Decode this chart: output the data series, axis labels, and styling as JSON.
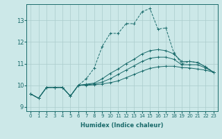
{
  "title": "",
  "xlabel": "Humidex (Indice chaleur)",
  "ylabel": "",
  "bg_color": "#cce8e8",
  "grid_color": "#aacccc",
  "line_color": "#1a6b6b",
  "xlim": [
    -0.5,
    23.5
  ],
  "ylim": [
    8.8,
    13.75
  ],
  "xticks": [
    0,
    1,
    2,
    3,
    4,
    5,
    6,
    7,
    8,
    9,
    10,
    11,
    12,
    13,
    14,
    15,
    16,
    17,
    18,
    19,
    20,
    21,
    22,
    23
  ],
  "yticks": [
    9,
    10,
    11,
    12,
    13
  ],
  "lines": [
    {
      "y": [
        9.6,
        9.4,
        9.9,
        9.9,
        9.9,
        9.5,
        10.0,
        10.3,
        10.8,
        11.8,
        12.4,
        12.4,
        12.85,
        12.85,
        13.4,
        13.55,
        12.6,
        12.65,
        11.5,
        11.0,
        11.1,
        11.05,
        10.85,
        10.6
      ],
      "ls": "--"
    },
    {
      "y": [
        9.6,
        9.4,
        9.9,
        9.9,
        9.9,
        9.5,
        10.0,
        10.05,
        10.1,
        10.3,
        10.55,
        10.75,
        11.0,
        11.2,
        11.45,
        11.6,
        11.65,
        11.6,
        11.45,
        11.1,
        11.1,
        11.05,
        10.85,
        10.6
      ],
      "ls": "-"
    },
    {
      "y": [
        9.6,
        9.4,
        9.9,
        9.9,
        9.9,
        9.5,
        10.0,
        10.02,
        10.06,
        10.15,
        10.3,
        10.5,
        10.7,
        10.9,
        11.1,
        11.25,
        11.3,
        11.3,
        11.2,
        10.95,
        10.95,
        10.95,
        10.8,
        10.6
      ],
      "ls": "-"
    },
    {
      "y": [
        9.6,
        9.4,
        9.9,
        9.9,
        9.9,
        9.5,
        10.0,
        10.0,
        10.02,
        10.06,
        10.12,
        10.2,
        10.35,
        10.5,
        10.65,
        10.78,
        10.85,
        10.88,
        10.88,
        10.82,
        10.8,
        10.75,
        10.7,
        10.6
      ],
      "ls": "-"
    }
  ]
}
